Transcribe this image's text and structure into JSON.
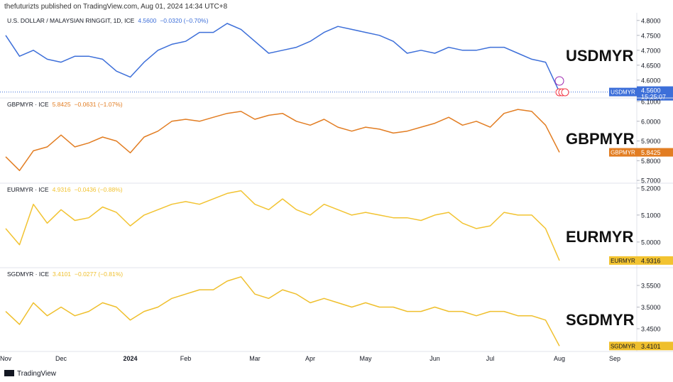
{
  "header": "thefuturizts published on TradingView.com, Aug 01, 2024 14:34 UTC+8",
  "footer": "TradingView",
  "chart_data": [
    {
      "type": "line",
      "title": "U.S. DOLLAR / MALAYSIAN RINGGIT, 1D, ICE",
      "price": "4.5600",
      "change": "−0.0320 (−0.70%)",
      "symbol": "USDMYR",
      "time": "15:25:07",
      "color": "#3d6fd9",
      "values": [
        4.75,
        4.68,
        4.7,
        4.67,
        4.66,
        4.68,
        4.68,
        4.67,
        4.63,
        4.61,
        4.66,
        4.7,
        4.72,
        4.73,
        4.76,
        4.76,
        4.79,
        4.77,
        4.73,
        4.69,
        4.7,
        4.71,
        4.73,
        4.76,
        4.78,
        4.77,
        4.76,
        4.75,
        4.73,
        4.69,
        4.7,
        4.69,
        4.71,
        4.7,
        4.7,
        4.71,
        4.71,
        4.69,
        4.67,
        4.66,
        4.56,
        null,
        null,
        null,
        null,
        null
      ],
      "ylim": [
        4.54,
        4.821
      ],
      "yticks": [
        {
          "value": 4.6,
          "label": "4.6000"
        },
        {
          "value": 4.65,
          "label": "4.6500"
        },
        {
          "value": 4.7,
          "label": "4.7000"
        },
        {
          "value": 4.75,
          "label": "4.7500"
        },
        {
          "value": 4.8,
          "label": "4.8000"
        }
      ]
    },
    {
      "type": "line",
      "title": "GBPMYR · ICE",
      "price": "5.8425",
      "change": "−0.0631 (−1.07%)",
      "symbol": "GBPMYR",
      "color": "#e27d22",
      "values": [
        5.82,
        5.75,
        5.85,
        5.87,
        5.93,
        5.87,
        5.89,
        5.92,
        5.9,
        5.84,
        5.92,
        5.95,
        6.0,
        6.01,
        6.0,
        6.02,
        6.04,
        6.05,
        6.01,
        6.03,
        6.04,
        6.0,
        5.98,
        6.01,
        5.97,
        5.95,
        5.97,
        5.96,
        5.94,
        5.95,
        5.97,
        5.99,
        6.02,
        5.98,
        6.0,
        5.97,
        6.04,
        6.06,
        6.05,
        5.98,
        5.8425,
        null,
        null,
        null,
        null,
        null
      ],
      "ylim": [
        5.686,
        6.118
      ],
      "yticks": [
        {
          "value": 5.7,
          "label": "5.7000"
        },
        {
          "value": 5.8,
          "label": "5.8000"
        },
        {
          "value": 5.9,
          "label": "5.9000"
        },
        {
          "value": 6.0,
          "label": "6.0000"
        },
        {
          "value": 6.1,
          "label": "6.1000"
        }
      ]
    },
    {
      "type": "line",
      "title": "EURMYR · ICE",
      "price": "4.9316",
      "change": "−0.0436 (−0.88%)",
      "symbol": "EURMYR",
      "color": "#f2c331",
      "values": [
        5.05,
        4.99,
        5.14,
        5.07,
        5.12,
        5.08,
        5.09,
        5.13,
        5.11,
        5.06,
        5.1,
        5.12,
        5.14,
        5.15,
        5.14,
        5.16,
        5.18,
        5.19,
        5.14,
        5.12,
        5.16,
        5.12,
        5.1,
        5.14,
        5.12,
        5.1,
        5.11,
        5.1,
        5.09,
        5.09,
        5.08,
        5.1,
        5.11,
        5.07,
        5.05,
        5.06,
        5.11,
        5.1,
        5.1,
        5.05,
        4.9316,
        null,
        null,
        null,
        null,
        null
      ],
      "ylim": [
        4.905,
        5.218
      ],
      "yticks": [
        {
          "value": 5.0,
          "label": "5.0000"
        },
        {
          "value": 5.1,
          "label": "5.1000"
        },
        {
          "value": 5.2,
          "label": "5.2000"
        }
      ]
    },
    {
      "type": "line",
      "title": "SGDMYR · ICE",
      "price": "3.4101",
      "change": "−0.0277 (−0.81%)",
      "symbol": "SGDMYR",
      "color": "#efbf2c",
      "values": [
        3.49,
        3.46,
        3.51,
        3.48,
        3.5,
        3.48,
        3.49,
        3.51,
        3.5,
        3.47,
        3.49,
        3.5,
        3.52,
        3.53,
        3.54,
        3.54,
        3.56,
        3.57,
        3.53,
        3.52,
        3.54,
        3.53,
        3.51,
        3.52,
        3.51,
        3.5,
        3.51,
        3.5,
        3.5,
        3.49,
        3.49,
        3.5,
        3.49,
        3.49,
        3.48,
        3.49,
        3.49,
        3.48,
        3.48,
        3.47,
        3.4101,
        null,
        null,
        null,
        null,
        null
      ],
      "ylim": [
        3.3975,
        3.591
      ],
      "yticks": [
        {
          "value": 3.45,
          "label": "3.4500"
        },
        {
          "value": 3.5,
          "label": "3.5000"
        },
        {
          "value": 3.55,
          "label": "3.5500"
        }
      ],
      "categories": [
        "Nov",
        null,
        null,
        null,
        "Dec",
        null,
        null,
        null,
        null,
        "2024",
        null,
        null,
        null,
        "Feb",
        null,
        null,
        null,
        null,
        "Mar",
        null,
        null,
        null,
        "Apr",
        null,
        null,
        null,
        "May",
        null,
        null,
        null,
        null,
        "Jun",
        null,
        null,
        null,
        "Jul",
        null,
        null,
        null,
        null,
        "Aug",
        null,
        null,
        null,
        "Sep",
        null
      ]
    }
  ]
}
